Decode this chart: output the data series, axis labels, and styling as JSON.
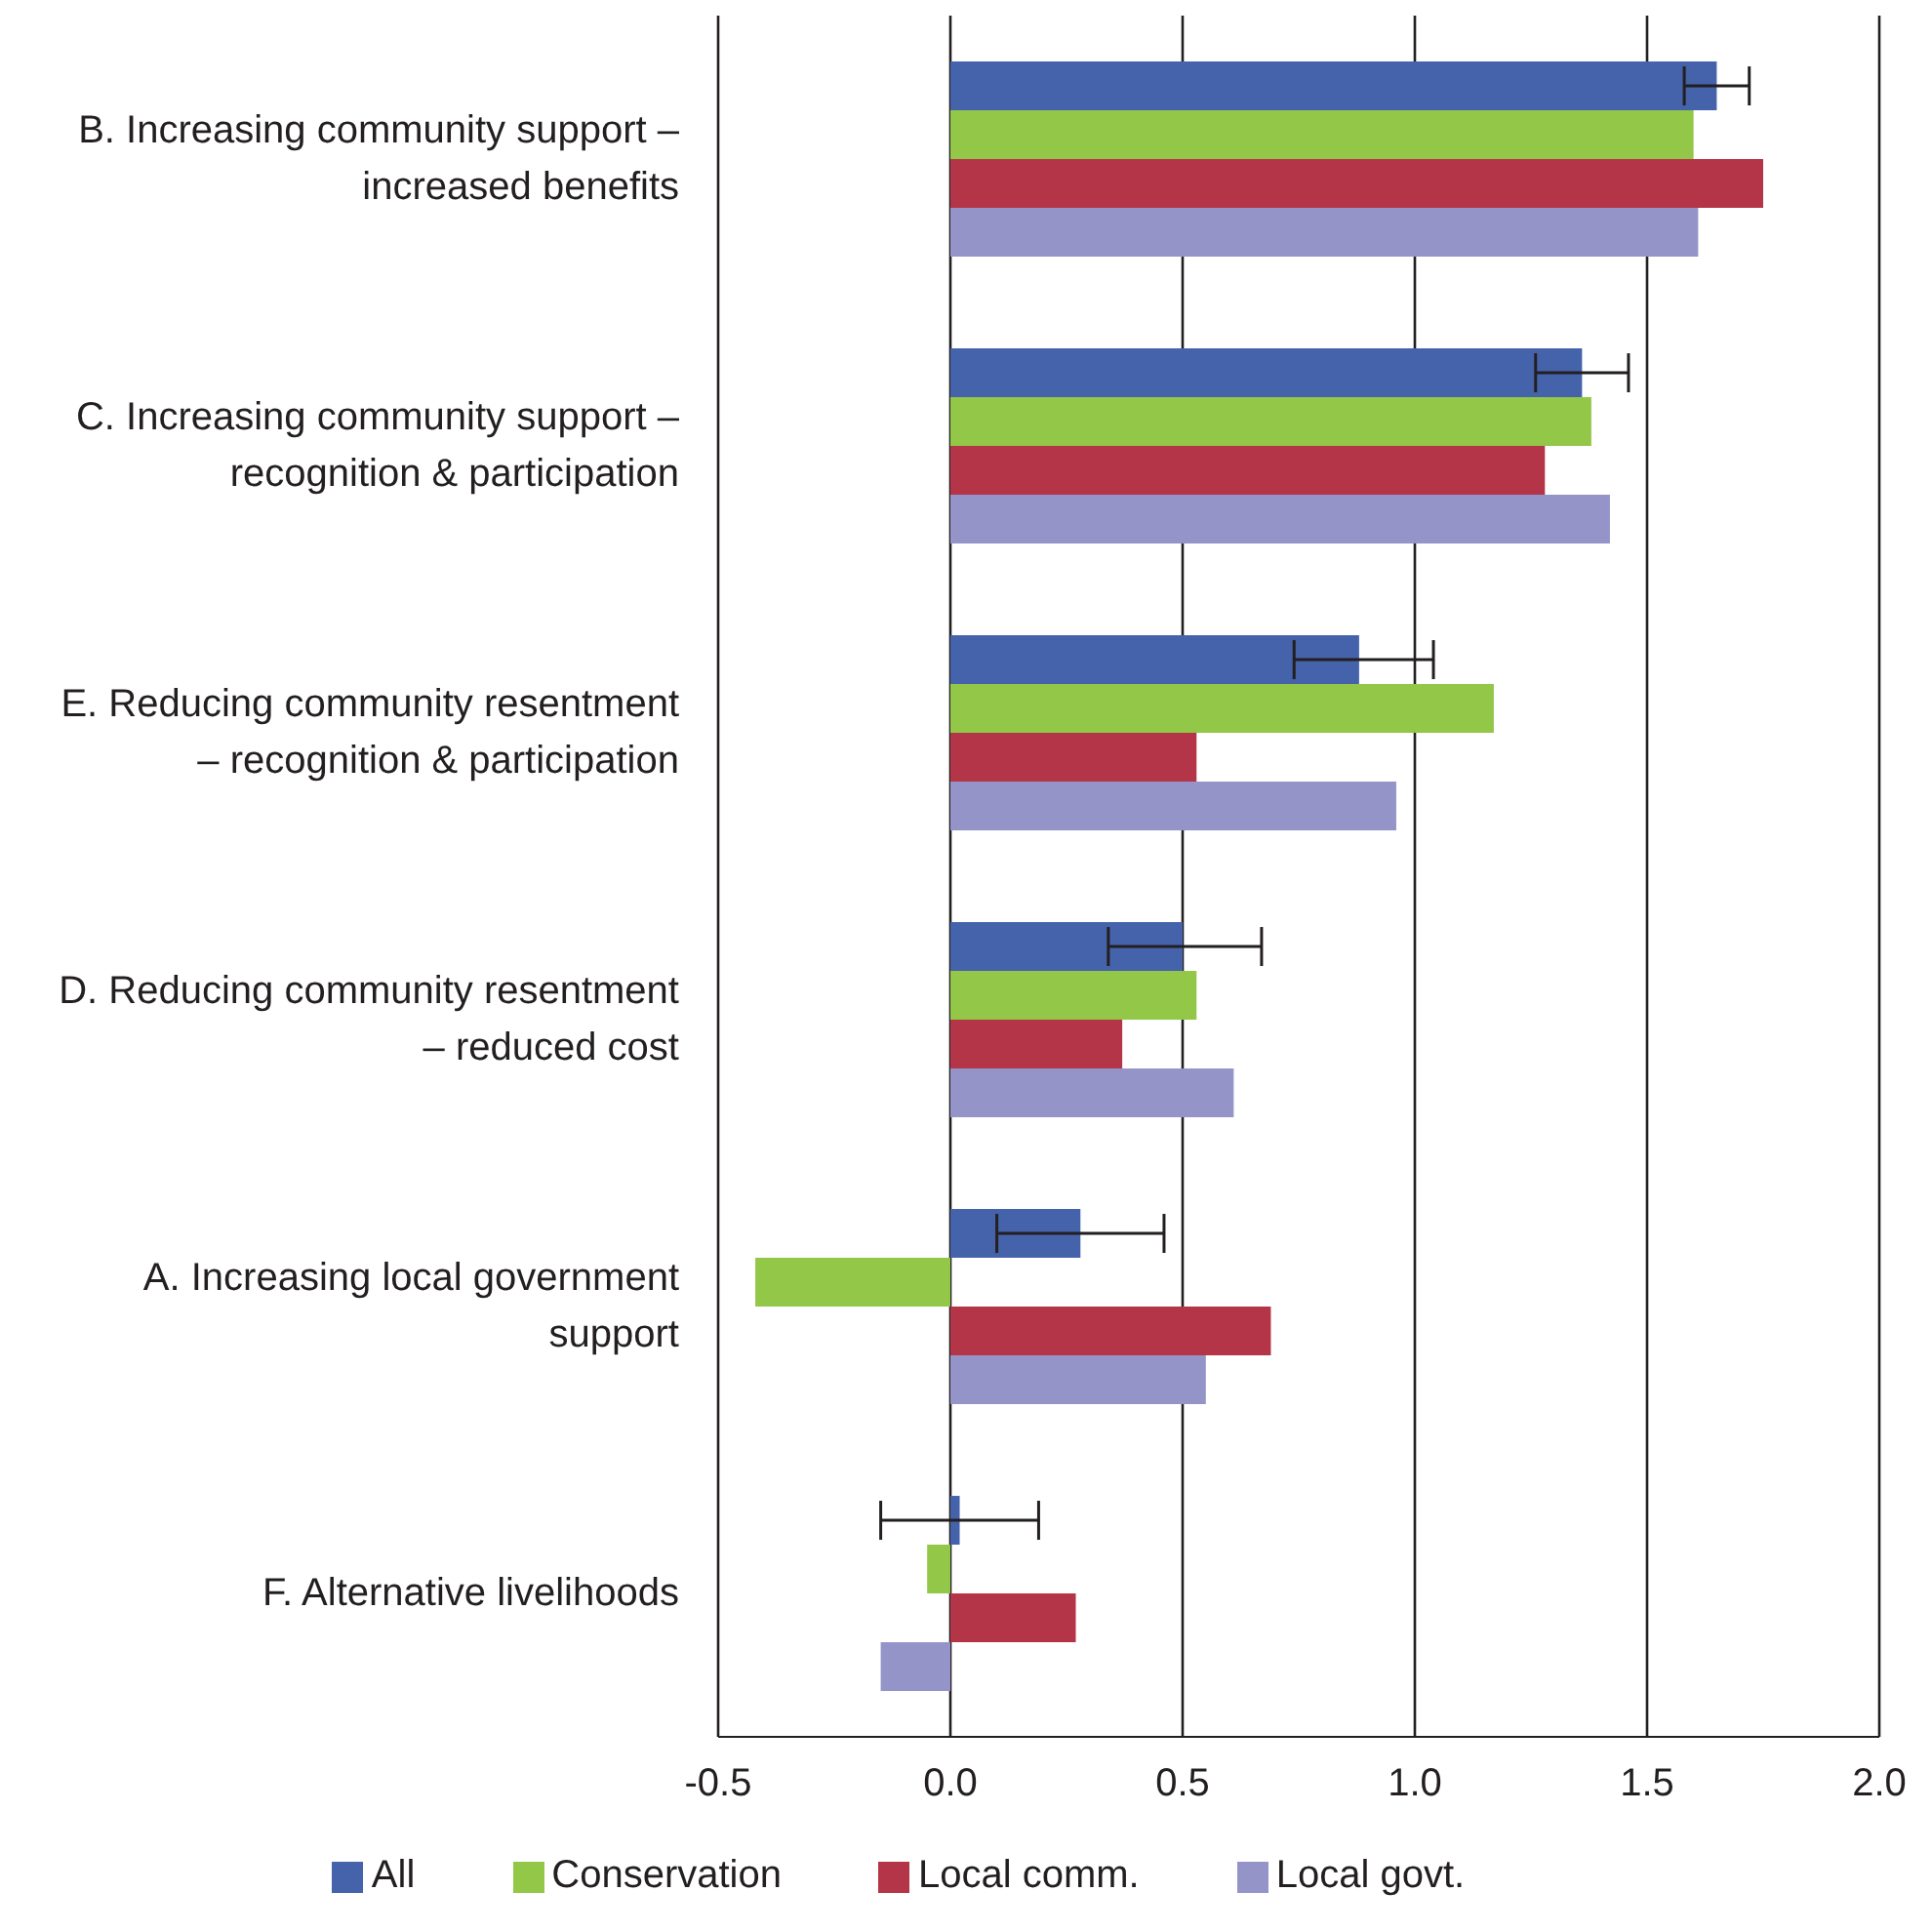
{
  "chart_data": {
    "type": "bar",
    "orientation": "horizontal",
    "categories": [
      "B. Increasing community support – increased benefits",
      "C. Increasing community support – recognition & participation",
      "E. Reducing community resentment – recognition & participation",
      "D. Reducing community resentment – reduced cost",
      "A. Increasing local government support",
      "F. Alternative livelihoods"
    ],
    "series": [
      {
        "name": "All",
        "color": "#4563aa",
        "values": [
          1.65,
          1.36,
          0.88,
          0.5,
          0.28,
          0.02
        ],
        "errors": [
          [
            1.58,
            1.72
          ],
          [
            1.26,
            1.46
          ],
          [
            0.74,
            1.04
          ],
          [
            0.34,
            0.67
          ],
          [
            0.1,
            0.46
          ],
          [
            -0.15,
            0.19
          ]
        ]
      },
      {
        "name": "Conservation",
        "color": "#92c748",
        "values": [
          1.6,
          1.38,
          1.17,
          0.53,
          -0.42,
          -0.05
        ]
      },
      {
        "name": "Local comm.",
        "color": "#b43547",
        "values": [
          1.75,
          1.28,
          0.53,
          0.37,
          0.69,
          0.27
        ]
      },
      {
        "name": "Local govt.",
        "color": "#9494c8",
        "values": [
          1.61,
          1.42,
          0.96,
          0.61,
          0.55,
          -0.15
        ]
      }
    ],
    "xlim": [
      -0.5,
      2
    ],
    "xticks": [
      -0.5,
      {
        "value": 0,
        "label": "0.0"
      },
      0.5,
      {
        "value": 1,
        "label": "1.0"
      },
      1.5,
      {
        "value": 2,
        "label": "2.0"
      }
    ],
    "grid": "x",
    "legend": "bottom"
  }
}
